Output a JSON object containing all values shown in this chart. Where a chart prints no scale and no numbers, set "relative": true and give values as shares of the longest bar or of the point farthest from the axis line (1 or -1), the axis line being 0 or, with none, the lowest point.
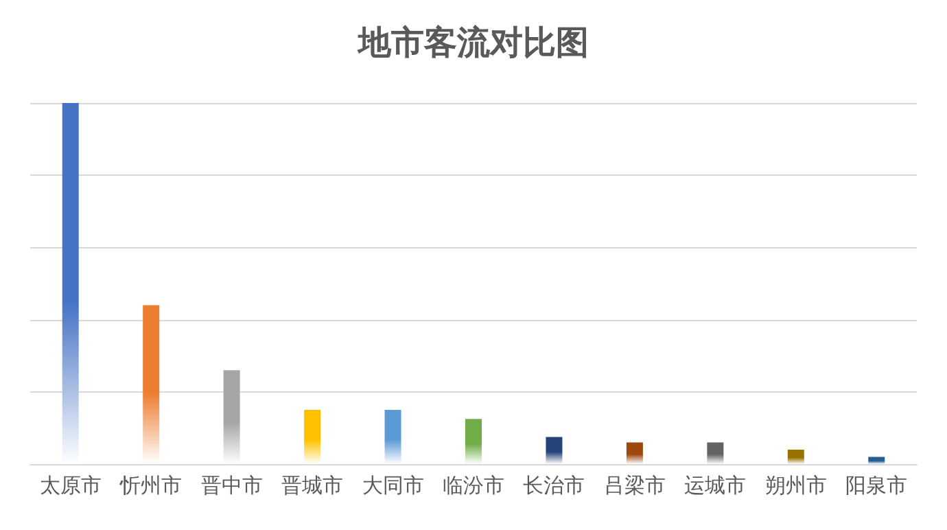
{
  "chart_data": {
    "type": "bar",
    "title": "地市客流对比图",
    "relative": true,
    "grid": true,
    "categories": [
      "太原市",
      "忻州市",
      "晋中市",
      "晋城市",
      "大同市",
      "临汾市",
      "长治市",
      "吕梁市",
      "运城市",
      "朔州市",
      "阳泉市"
    ],
    "values": [
      1,
      0.44,
      0.26,
      0.15,
      0.15,
      0.125,
      0.075,
      0.06,
      0.06,
      0.04,
      0.02
    ],
    "colors": [
      "#4472c4",
      "#ed7d31",
      "#a5a5a5",
      "#ffc000",
      "#5b9bd5",
      "#70ad47",
      "#264478",
      "#9e480e",
      "#636363",
      "#997300",
      "#255e91"
    ]
  }
}
